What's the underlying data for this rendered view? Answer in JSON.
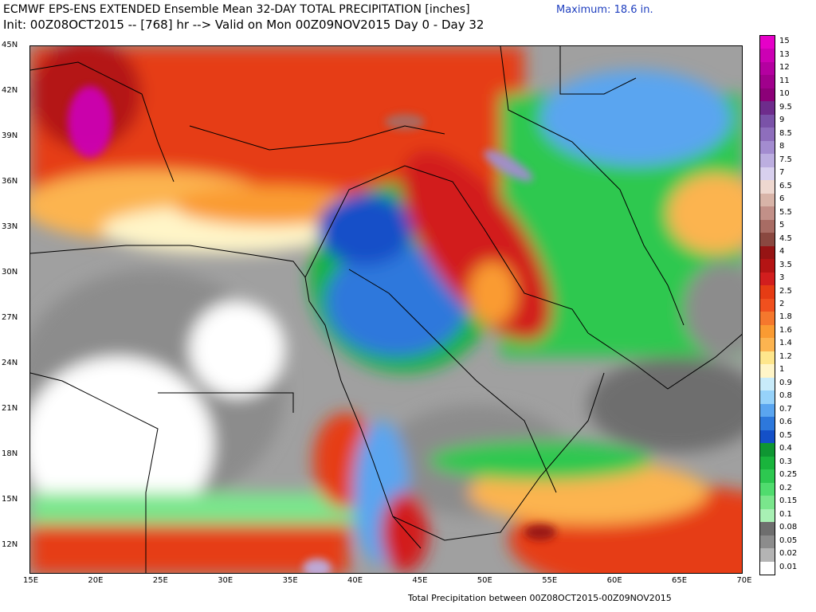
{
  "header": {
    "title_line1": "ECMWF EPS-ENS EXTENDED Ensemble Mean 32-DAY TOTAL PRECIPITATION [inches]",
    "title_line2": "Init: 00Z08OCT2015 -- [768] hr --> Valid on Mon 00Z09NOV2015  Day 0 - Day 32",
    "maximum": "Maximum:  18.6 in."
  },
  "footer": "Total Precipitation between 00Z08OCT2015-00Z09NOV2015",
  "map": {
    "lat_labels": [
      "45N",
      "42N",
      "39N",
      "36N",
      "33N",
      "30N",
      "27N",
      "24N",
      "21N",
      "18N",
      "15N",
      "12N"
    ],
    "lon_labels": [
      "15E",
      "20E",
      "25E",
      "30E",
      "35E",
      "40E",
      "45E",
      "50E",
      "55E",
      "60E",
      "65E",
      "70E"
    ]
  },
  "legend": {
    "levels": [
      {
        "label": "15",
        "color": "#e600c8"
      },
      {
        "label": "13",
        "color": "#cc00b4"
      },
      {
        "label": "12",
        "color": "#b400a0"
      },
      {
        "label": "11",
        "color": "#a0008c"
      },
      {
        "label": "10",
        "color": "#8c0078"
      },
      {
        "label": "9.5",
        "color": "#6e2c8c"
      },
      {
        "label": "9",
        "color": "#7a52a8"
      },
      {
        "label": "8.5",
        "color": "#8e6ebc"
      },
      {
        "label": "8",
        "color": "#a38cd0"
      },
      {
        "label": "7.5",
        "color": "#bcaee0"
      },
      {
        "label": "7",
        "color": "#d8d0ee"
      },
      {
        "label": "6.5",
        "color": "#eed8d0"
      },
      {
        "label": "6",
        "color": "#d8b4a8"
      },
      {
        "label": "5.5",
        "color": "#c29088"
      },
      {
        "label": "5",
        "color": "#a86c64"
      },
      {
        "label": "4.5",
        "color": "#8a4840"
      },
      {
        "label": "4",
        "color": "#961414"
      },
      {
        "label": "3.5",
        "color": "#b41414"
      },
      {
        "label": "3",
        "color": "#d21e1e"
      },
      {
        "label": "2.5",
        "color": "#e63c14"
      },
      {
        "label": "2",
        "color": "#f0501e"
      },
      {
        "label": "1.8",
        "color": "#f5782d"
      },
      {
        "label": "1.6",
        "color": "#fa9b32"
      },
      {
        "label": "1.4",
        "color": "#fcb450"
      },
      {
        "label": "1.2",
        "color": "#fee68c"
      },
      {
        "label": "1",
        "color": "#fff5c8"
      },
      {
        "label": "0.9",
        "color": "#c8ebfa"
      },
      {
        "label": "0.8",
        "color": "#96d2fa"
      },
      {
        "label": "0.7",
        "color": "#5aa5f0"
      },
      {
        "label": "0.6",
        "color": "#2d78dc"
      },
      {
        "label": "0.5",
        "color": "#1450c8"
      },
      {
        "label": "0.4",
        "color": "#0f9632"
      },
      {
        "label": "0.3",
        "color": "#19b43c"
      },
      {
        "label": "0.25",
        "color": "#2dc850"
      },
      {
        "label": "0.2",
        "color": "#50dc6e"
      },
      {
        "label": "0.15",
        "color": "#7ae68c"
      },
      {
        "label": "0.1",
        "color": "#a8f0b4"
      },
      {
        "label": "0.08",
        "color": "#6e6e6e"
      },
      {
        "label": "0.05",
        "color": "#8c8c8c"
      },
      {
        "label": "0.02",
        "color": "#b4b4b4"
      },
      {
        "label": "0.01",
        "color": "#ffffff"
      }
    ]
  }
}
